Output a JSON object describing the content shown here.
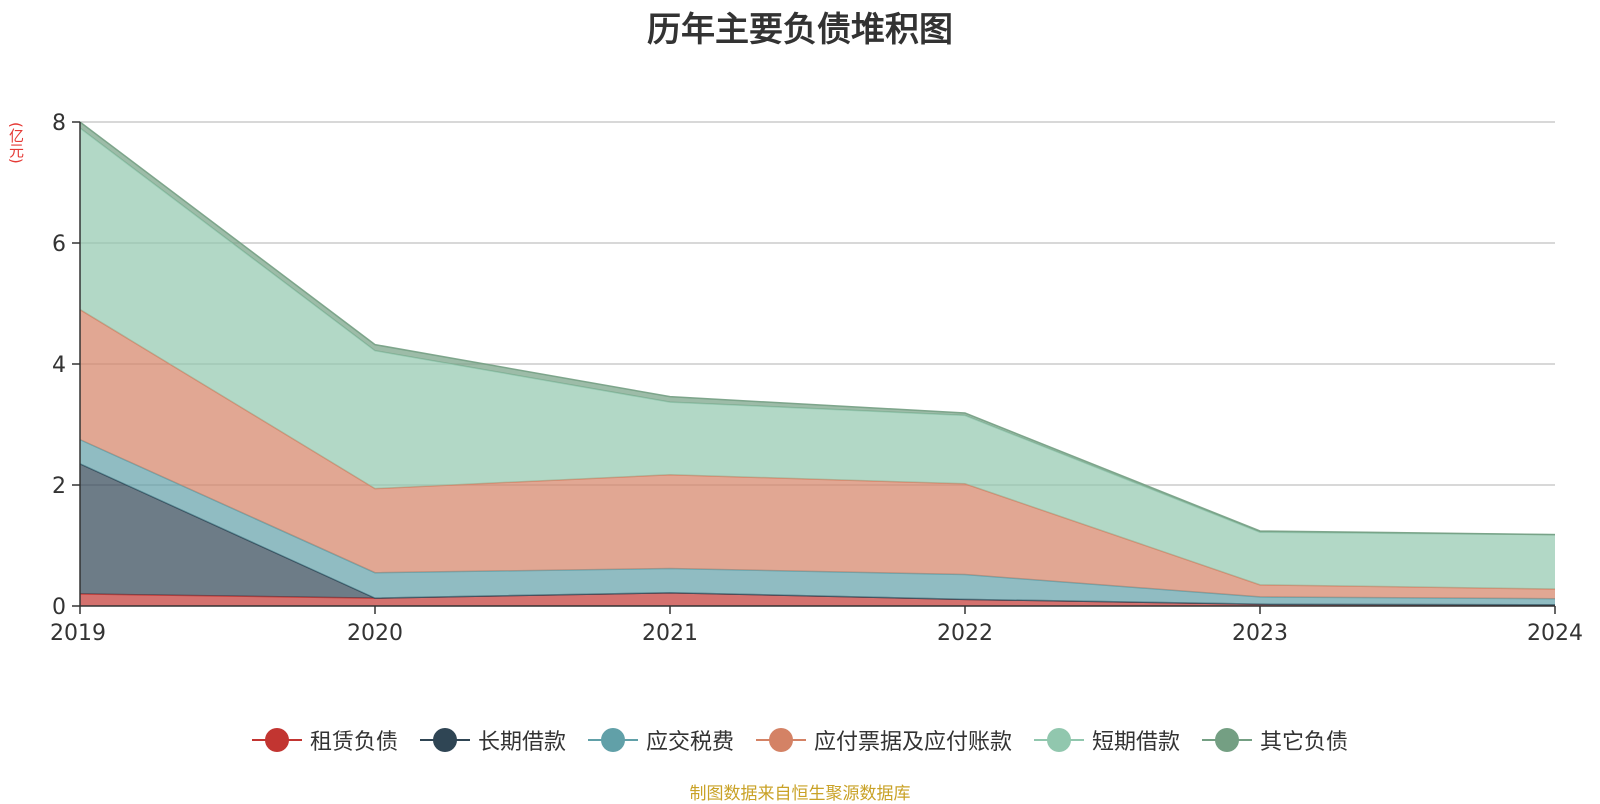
{
  "title": "历年主要负债堆积图",
  "unit_label": "(亿元)",
  "source_note": "制图数据来自恒生聚源数据库",
  "chart_data": {
    "type": "area",
    "stacked": true,
    "title": "历年主要负债堆积图",
    "ylabel": "(亿元)",
    "x": [
      "2019",
      "2020",
      "2021",
      "2022",
      "2023",
      "2024"
    ],
    "ylim": [
      0,
      8
    ],
    "yticks": [
      0,
      2,
      4,
      6,
      8
    ],
    "grid": true,
    "legend_position": "bottom",
    "series": [
      {
        "name": "租赁负债",
        "color": "#c23531",
        "values": [
          0.2,
          0.13,
          0.22,
          0.11,
          0.03,
          0.02
        ]
      },
      {
        "name": "长期借款",
        "color": "#2f4554",
        "values": [
          2.15,
          0.0,
          0.0,
          0.0,
          0.0,
          0.0
        ]
      },
      {
        "name": "应交税费",
        "color": "#61a0a8",
        "values": [
          0.4,
          0.42,
          0.4,
          0.41,
          0.12,
          0.1
        ]
      },
      {
        "name": "应付票据及应付账款",
        "color": "#d48265",
        "values": [
          2.15,
          1.39,
          1.55,
          1.5,
          0.2,
          0.16
        ]
      },
      {
        "name": "短期借款",
        "color": "#91c7ae",
        "values": [
          3.0,
          2.28,
          1.2,
          1.13,
          0.87,
          0.9
        ]
      },
      {
        "name": "其它负债",
        "color": "#749f83",
        "values": [
          0.1,
          0.1,
          0.09,
          0.04,
          0.02,
          0.0
        ]
      }
    ]
  }
}
